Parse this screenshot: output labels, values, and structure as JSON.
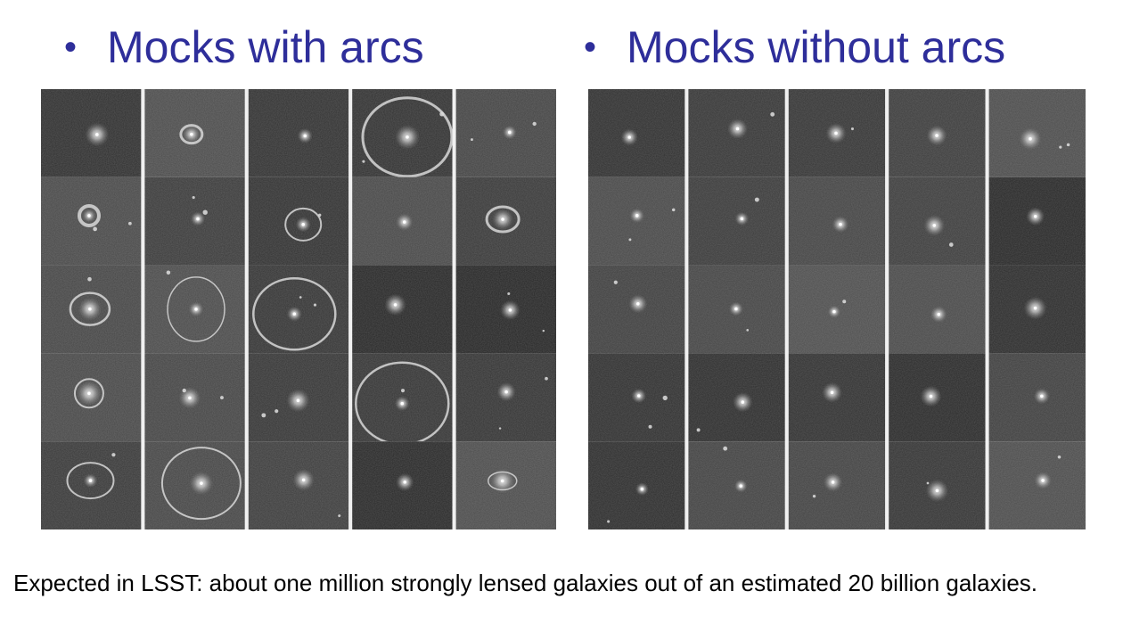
{
  "slide": {
    "bullet": "•",
    "left_heading": "Mocks with arcs",
    "right_heading": "Mocks without arcs",
    "caption": "Expected in LSST: about  one million strongly lensed galaxies out of an estimated 20 billion galaxies."
  },
  "colors": {
    "heading": "#2e2e9a",
    "caption": "#000000",
    "background": "#ffffff"
  }
}
